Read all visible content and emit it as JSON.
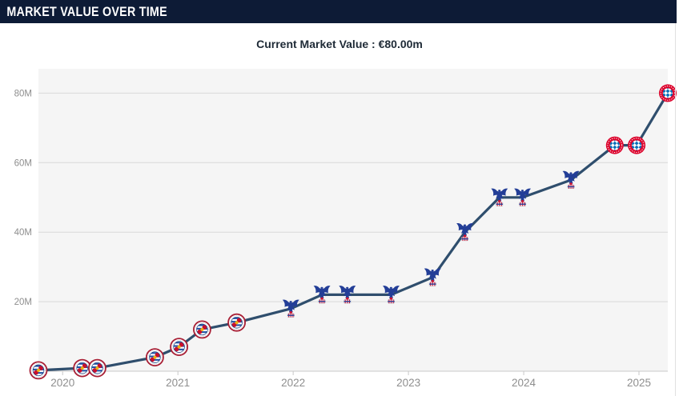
{
  "header": {
    "title": "MARKET VALUE OVER TIME"
  },
  "subtitle": {
    "text": "Current Market Value : €80.00m"
  },
  "colors": {
    "header_bg": "#0d1b36",
    "subtitle_text": "#1e2a36",
    "line": "#2f4e6d",
    "plot_bg": "#f5f5f5",
    "grid": "#d9d9d9",
    "axis": "#c9c9c9",
    "tick_label": "#8e8e8e",
    "reading_red": "#c8102e",
    "palace_blue": "#233e97",
    "bayern_red": "#dc052d",
    "bayern_blue": "#0a70b8"
  },
  "chart_data": {
    "type": "line",
    "title": "Market value over time",
    "unit": "EUR million",
    "current_value": "€80.00m",
    "legend_position": "none",
    "grid": true,
    "x_range": [
      2019.79,
      2025.25
    ],
    "y_range": [
      0,
      87
    ],
    "x_ticks": [
      {
        "value": 2020,
        "label": "2020"
      },
      {
        "value": 2021,
        "label": "2021"
      },
      {
        "value": 2022,
        "label": "2022"
      },
      {
        "value": 2023,
        "label": "2023"
      },
      {
        "value": 2024,
        "label": "2024"
      },
      {
        "value": 2025,
        "label": "2025"
      }
    ],
    "y_ticks": [
      {
        "value": 20,
        "label": "20M"
      },
      {
        "value": 40,
        "label": "40M"
      },
      {
        "value": 60,
        "label": "60M"
      },
      {
        "value": 80,
        "label": "80M"
      }
    ],
    "clubs": {
      "reading": "Reading FC",
      "palace": "Crystal Palace",
      "bayern": "FC Bayern München"
    },
    "points": [
      {
        "date": "Oct 2019",
        "x": 2019.79,
        "value": 0.25,
        "club": "reading"
      },
      {
        "date": "Mar 2020",
        "x": 2020.17,
        "value": 0.9,
        "club": "reading"
      },
      {
        "date": "Apr 2020",
        "x": 2020.3,
        "value": 0.9,
        "club": "reading"
      },
      {
        "date": "Oct 2020",
        "x": 2020.8,
        "value": 4,
        "club": "reading"
      },
      {
        "date": "Jan 2021",
        "x": 2021.01,
        "value": 7,
        "club": "reading"
      },
      {
        "date": "Mar 2021",
        "x": 2021.21,
        "value": 12,
        "club": "reading"
      },
      {
        "date": "Jul 2021",
        "x": 2021.51,
        "value": 14,
        "club": "reading"
      },
      {
        "date": "Dec 2021",
        "x": 2021.98,
        "value": 18,
        "club": "palace"
      },
      {
        "date": "Mar 2022",
        "x": 2022.25,
        "value": 22,
        "club": "palace"
      },
      {
        "date": "Jun 2022",
        "x": 2022.47,
        "value": 22,
        "club": "palace"
      },
      {
        "date": "Nov 2022",
        "x": 2022.85,
        "value": 22,
        "club": "palace"
      },
      {
        "date": "Mar 2023",
        "x": 2023.21,
        "value": 27,
        "club": "palace"
      },
      {
        "date": "Jun 2023",
        "x": 2023.49,
        "value": 40,
        "club": "palace"
      },
      {
        "date": "Oct 2023",
        "x": 2023.79,
        "value": 50,
        "club": "palace"
      },
      {
        "date": "Dec 2023",
        "x": 2023.99,
        "value": 50,
        "club": "palace"
      },
      {
        "date": "May 2024",
        "x": 2024.41,
        "value": 55,
        "club": "palace"
      },
      {
        "date": "Oct 2024",
        "x": 2024.79,
        "value": 65,
        "club": "bayern"
      },
      {
        "date": "Dec 2024",
        "x": 2024.98,
        "value": 65,
        "club": "bayern"
      },
      {
        "date": "Mar 2025",
        "x": 2025.25,
        "value": 80,
        "club": "bayern"
      }
    ]
  }
}
